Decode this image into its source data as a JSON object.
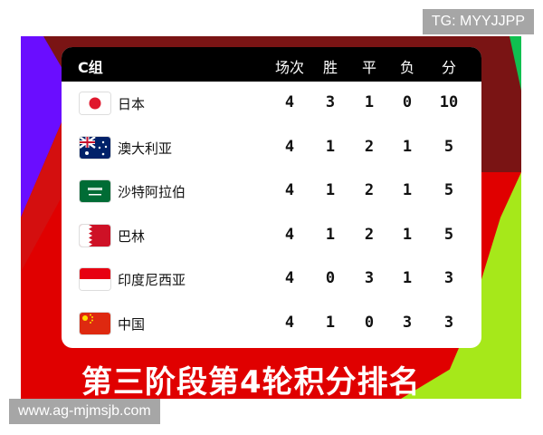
{
  "group_label": "C组",
  "columns": [
    "场次",
    "胜",
    "平",
    "负",
    "分"
  ],
  "rows": [
    {
      "team": "日本",
      "flag": "japan-flag",
      "played": "4",
      "won": "3",
      "drawn": "1",
      "lost": "0",
      "points": "10"
    },
    {
      "team": "澳大利亚",
      "flag": "australia-flag",
      "played": "4",
      "won": "1",
      "drawn": "2",
      "lost": "1",
      "points": "5"
    },
    {
      "team": "沙特阿拉伯",
      "flag": "saudi-arabia-flag",
      "played": "4",
      "won": "1",
      "drawn": "2",
      "lost": "1",
      "points": "5"
    },
    {
      "team": "巴林",
      "flag": "bahrain-flag",
      "played": "4",
      "won": "1",
      "drawn": "2",
      "lost": "1",
      "points": "5"
    },
    {
      "team": "印度尼西亚",
      "flag": "indonesia-flag",
      "played": "4",
      "won": "0",
      "drawn": "3",
      "lost": "1",
      "points": "3"
    },
    {
      "team": "中国",
      "flag": "china-flag",
      "played": "4",
      "won": "1",
      "drawn": "0",
      "lost": "3",
      "points": "3"
    }
  ],
  "banner_title": "第三阶段第4轮积分排名",
  "watermark_top": "TG: MYYJJPP",
  "watermark_bottom": "www.ag-mjmsjb.com",
  "colors": {
    "purple": "#6a0dff",
    "dark_red": "#7a1414",
    "red": "#e00000",
    "green": "#a6e81a"
  }
}
